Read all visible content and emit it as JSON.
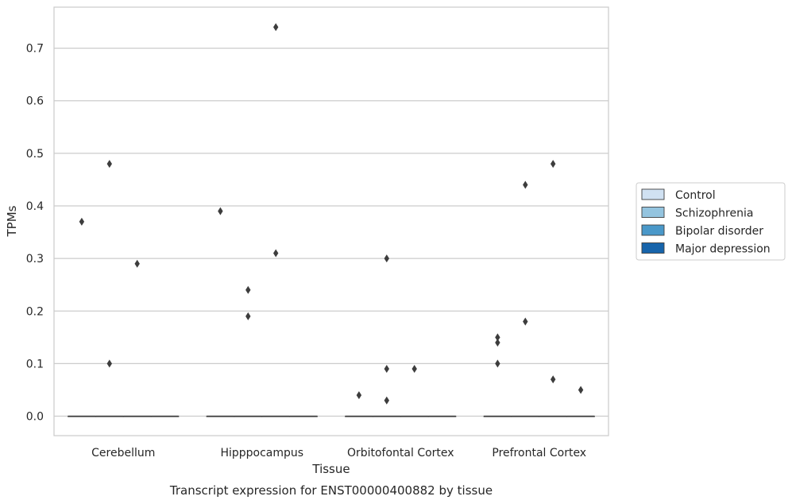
{
  "chart_data": {
    "type": "box",
    "xlabel": "Tissue",
    "ylabel": "TPMs",
    "caption": "Transcript expression for ENST00000400882 by tissue",
    "categories": [
      "Cerebellum",
      "Hipppocampus",
      "Orbitofontal Cortex",
      "Prefrontal Cortex"
    ],
    "ylim": [
      -0.037,
      0.778
    ],
    "yticks": [
      0.0,
      0.1,
      0.2,
      0.3,
      0.4,
      0.5,
      0.6,
      0.7
    ],
    "ytick_labels": [
      "0.0",
      "0.1",
      "0.2",
      "0.3",
      "0.4",
      "0.5",
      "0.6",
      "0.7"
    ],
    "grid": true,
    "legend_position": "right",
    "series": [
      {
        "name": "Control",
        "color": "#d0e1f2",
        "boxes": [
          {
            "q1": 0,
            "median": 0,
            "q3": 0,
            "outliers": [
              0.37
            ]
          },
          {
            "q1": 0,
            "median": 0,
            "q3": 0,
            "outliers": [
              0.39
            ]
          },
          {
            "q1": 0,
            "median": 0,
            "q3": 0,
            "outliers": [
              0.04
            ]
          },
          {
            "q1": 0,
            "median": 0,
            "q3": 0,
            "outliers": [
              0.15,
              0.14,
              0.1
            ]
          }
        ]
      },
      {
        "name": "Schizophrenia",
        "color": "#94c4df",
        "boxes": [
          {
            "q1": 0,
            "median": 0,
            "q3": 0,
            "outliers": [
              0.48,
              0.1
            ]
          },
          {
            "q1": 0,
            "median": 0,
            "q3": 0,
            "outliers": [
              0.24,
              0.19
            ]
          },
          {
            "q1": 0,
            "median": 0,
            "q3": 0,
            "outliers": [
              0.3,
              0.09,
              0.03
            ]
          },
          {
            "q1": 0,
            "median": 0,
            "q3": 0,
            "outliers": [
              0.44,
              0.18
            ]
          }
        ]
      },
      {
        "name": "Bipolar disorder",
        "color": "#4a98c9",
        "boxes": [
          {
            "q1": 0,
            "median": 0,
            "q3": 0,
            "outliers": [
              0.29
            ]
          },
          {
            "q1": 0,
            "median": 0,
            "q3": 0,
            "outliers": [
              0.74,
              0.31
            ]
          },
          {
            "q1": 0,
            "median": 0,
            "q3": 0,
            "outliers": [
              0.09
            ]
          },
          {
            "q1": 0,
            "median": 0,
            "q3": 0,
            "outliers": [
              0.48,
              0.07
            ]
          }
        ]
      },
      {
        "name": "Major depression",
        "color": "#1764ab",
        "boxes": [
          {
            "q1": 0,
            "median": 0,
            "q3": 0,
            "outliers": []
          },
          {
            "q1": 0,
            "median": 0,
            "q3": 0,
            "outliers": []
          },
          {
            "q1": 0,
            "median": 0,
            "q3": 0,
            "outliers": []
          },
          {
            "q1": 0,
            "median": 0,
            "q3": 0,
            "outliers": [
              0.05
            ]
          }
        ]
      }
    ]
  }
}
